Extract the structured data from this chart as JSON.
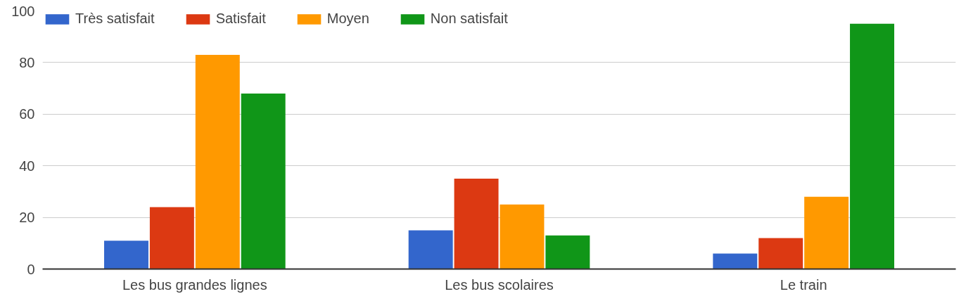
{
  "chart_data": {
    "type": "bar",
    "categories": [
      "Les bus grandes lignes",
      "Les bus scolaires",
      "Le train"
    ],
    "series": [
      {
        "name": "Très satisfait",
        "color": "#3366cc",
        "values": [
          11,
          15,
          6
        ]
      },
      {
        "name": "Satisfait",
        "color": "#dc3912",
        "values": [
          24,
          35,
          12
        ]
      },
      {
        "name": "Moyen",
        "color": "#ff9900",
        "values": [
          83,
          25,
          28
        ]
      },
      {
        "name": "Non satisfait",
        "color": "#109618",
        "values": [
          68,
          13,
          95
        ]
      }
    ],
    "ylim": [
      0,
      100
    ],
    "yticks": [
      0,
      20,
      40,
      60,
      80,
      100
    ],
    "grid": "y",
    "legend": "top left"
  }
}
